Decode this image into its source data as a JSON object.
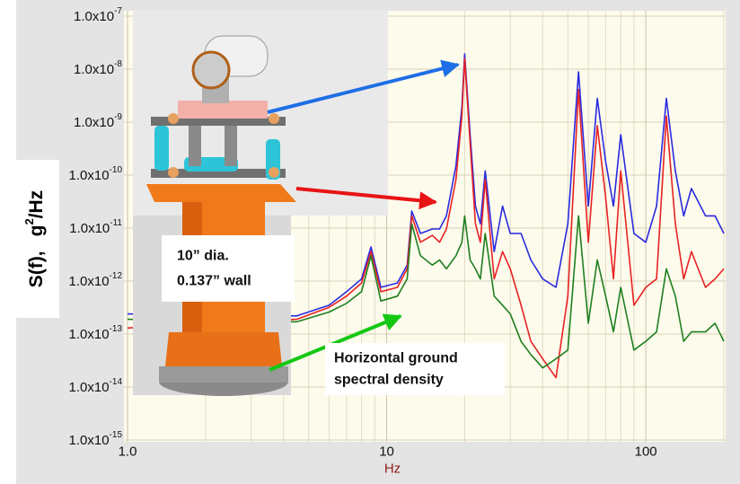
{
  "chart_data": {
    "type": "line",
    "xscale": "log",
    "yscale": "log",
    "grid": true,
    "minor_grid": true,
    "x_label": "Hz",
    "y_label": {
      "text": "S(f),",
      "unit": "g",
      "unit_exponent": "2",
      "unit_rest": "/Hz"
    },
    "xlim": [
      1,
      200
    ],
    "ylim": [
      1e-15,
      1e-07
    ],
    "xticks": [
      {
        "value": 1,
        "label": "1.0"
      },
      10,
      100
    ],
    "yticks": [
      {
        "value": 1e-07,
        "label": "1.0x10",
        "exponent": "-7"
      },
      {
        "value": 1e-08,
        "label": "1.0x10",
        "exponent": "-8"
      },
      {
        "value": 1e-09,
        "label": "1.0x10",
        "exponent": "-9"
      },
      {
        "value": 1e-10,
        "label": "1.0x10",
        "exponent": "-10"
      },
      {
        "value": 1e-11,
        "label": "1.0x10",
        "exponent": "-11"
      },
      {
        "value": 1e-12,
        "label": "1.0x10",
        "exponent": "-12"
      },
      {
        "value": 1e-13,
        "label": "1.0x10",
        "exponent": "-13"
      },
      {
        "value": 1e-14,
        "label": "1.0x10",
        "exponent": "-14"
      },
      {
        "value": 1e-15,
        "label": "1.0x10",
        "exponent": "-15"
      }
    ],
    "x": [
      1,
      4.5,
      6,
      7,
      8,
      8.7,
      9.5,
      11,
      12,
      12.5,
      13.5,
      15,
      16,
      17,
      18.5,
      19.5,
      20,
      21,
      22,
      23,
      24,
      26,
      28,
      30,
      33,
      36,
      40,
      45,
      50,
      55,
      60,
      65,
      70,
      75,
      80,
      90,
      100,
      110,
      120,
      130,
      140,
      150,
      170,
      185,
      200
    ],
    "series": [
      {
        "color": "#2a2ae0",
        "values": [
          2.4e-13,
          2.2e-13,
          3.5e-13,
          6.3e-13,
          1.1e-12,
          4.4e-12,
          7.6e-13,
          9.2e-13,
          2e-12,
          2.1e-11,
          7.9e-12,
          9.6e-12,
          9.6e-12,
          1.7e-11,
          1.5e-10,
          1.9e-09,
          1.94e-08,
          5.8e-10,
          2.6e-11,
          1.2e-11,
          1.2e-10,
          3.6e-12,
          2.6e-11,
          7.9e-12,
          7.9e-12,
          2.5e-12,
          1.1e-12,
          7.6e-13,
          1.2e-11,
          8.9e-09,
          2.6e-11,
          2.8e-09,
          1.8e-10,
          2.6e-11,
          5.8e-10,
          7.9e-12,
          5.4e-12,
          2.6e-11,
          2.8e-09,
          1.2e-10,
          1.7e-11,
          5.6e-11,
          1.7e-11,
          1.7e-11,
          7.9e-12
        ]
      },
      {
        "color": "#e82222",
        "values": [
          1.3e-13,
          1.9e-13,
          3.2e-13,
          5.2e-13,
          9.2e-13,
          3.6e-12,
          6.3e-13,
          7.6e-13,
          1.7e-12,
          1.7e-11,
          5.4e-12,
          7.3e-12,
          5.4e-12,
          9.6e-12,
          8.2e-11,
          1.3e-09,
          1.6e-08,
          3.9e-10,
          1.2e-11,
          5.4e-12,
          8.2e-11,
          1.1e-12,
          3.6e-12,
          1.7e-12,
          3.5e-13,
          7.3e-14,
          3.4e-14,
          1.5e-14,
          5.2e-13,
          4.1e-09,
          5.4e-12,
          8.6e-10,
          3.8e-11,
          1.1e-12,
          1.2e-10,
          3.5e-13,
          7.6e-13,
          1.1e-12,
          1.3e-09,
          1.2e-11,
          1.1e-12,
          3.6e-12,
          7.6e-13,
          1.1e-12,
          1.7e-12
        ]
      },
      {
        "color": "#1f7f1f",
        "values": [
          1.9e-13,
          1.7e-13,
          2.6e-13,
          3.8e-13,
          6.3e-13,
          3e-12,
          4.2e-13,
          5.2e-13,
          1.1e-12,
          1.2e-11,
          3e-12,
          2e-12,
          2.5e-12,
          1.7e-12,
          3e-12,
          5.4e-12,
          1.7e-11,
          2.5e-12,
          1.7e-12,
          1.1e-12,
          7.9e-12,
          5.2e-13,
          3.5e-13,
          2.4e-13,
          7.3e-14,
          4.1e-14,
          2.3e-14,
          3.4e-14,
          5e-14,
          1.7e-11,
          1.6e-13,
          2.5e-12,
          5.2e-13,
          1.1e-13,
          7.6e-13,
          5e-14,
          7.3e-14,
          1.1e-13,
          1.7e-12,
          5.2e-13,
          7.3e-14,
          1.1e-13,
          1.1e-13,
          1.6e-13,
          7.3e-14
        ]
      }
    ],
    "annotations": [
      {
        "lines": [
          "10” dia.",
          "0.137” wall"
        ]
      },
      {
        "lines": [
          "Horizontal ground",
          "spectral density"
        ]
      }
    ]
  }
}
